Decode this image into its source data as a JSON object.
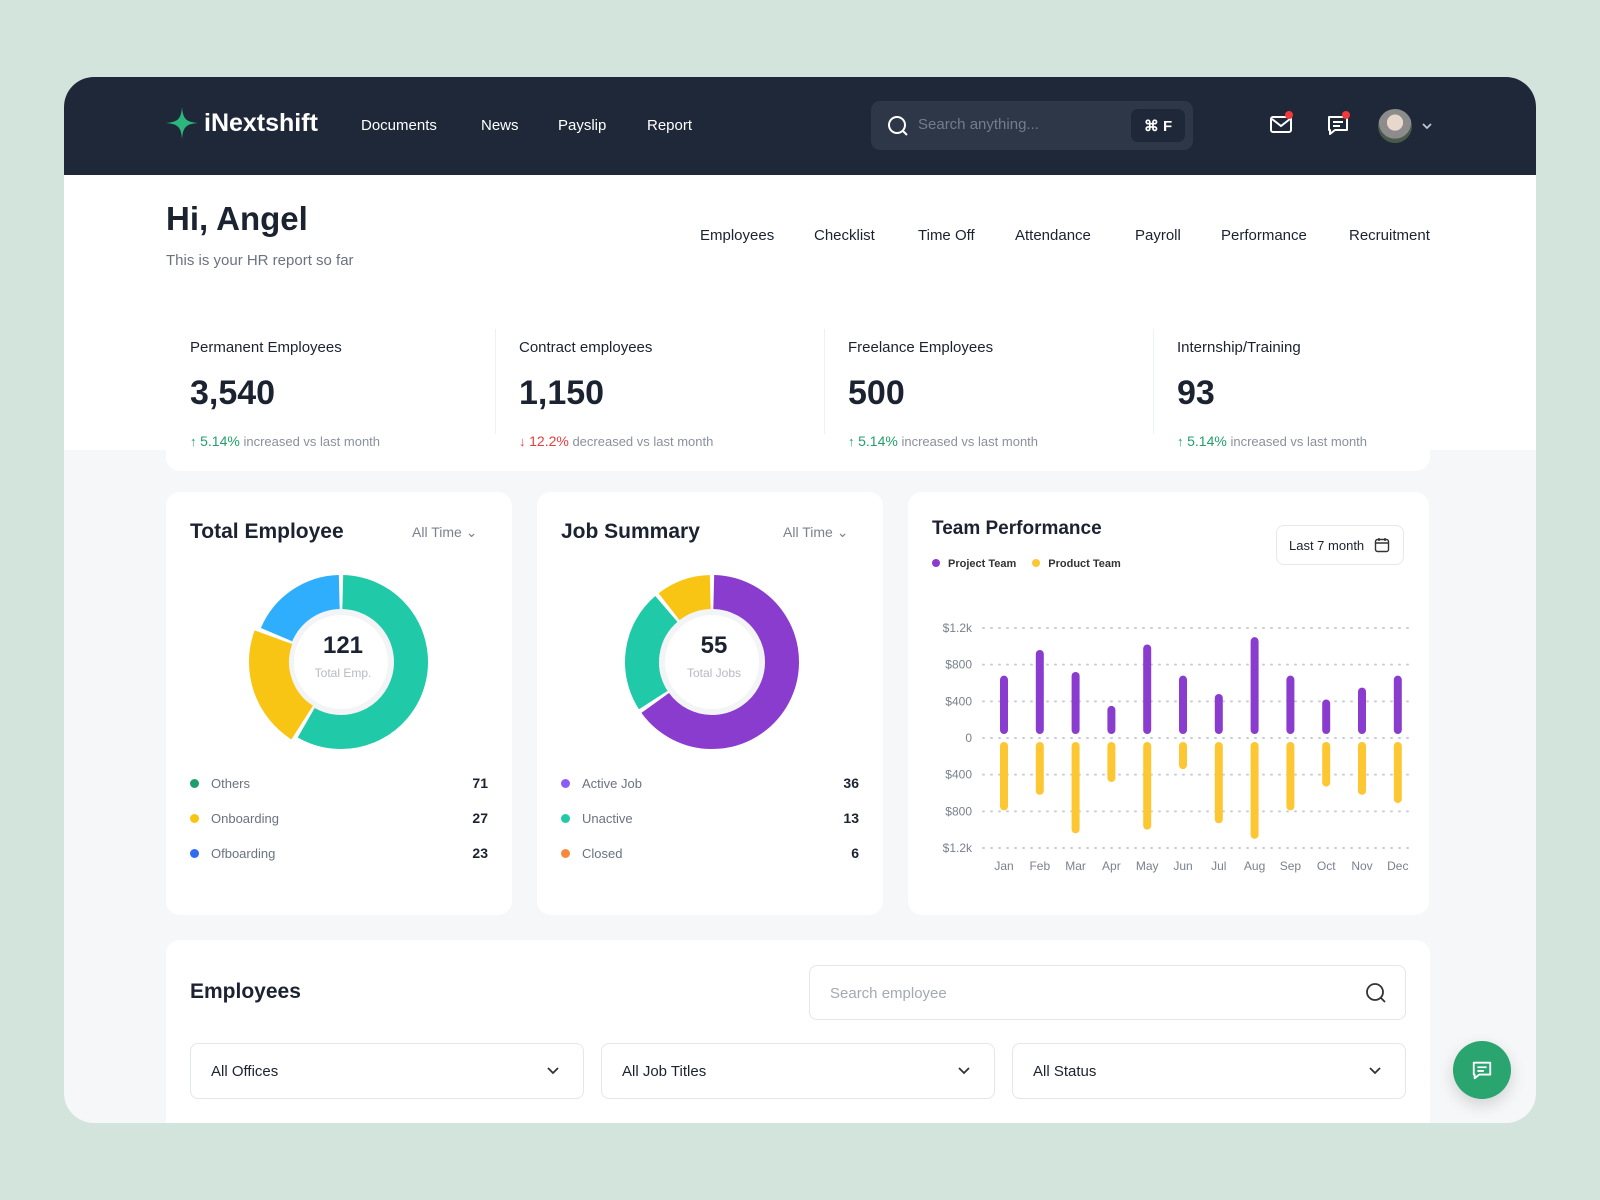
{
  "brand": "iNextshift",
  "nav": [
    "Documents",
    "News",
    "Payslip",
    "Report"
  ],
  "search": {
    "placeholder": "Search anything...",
    "shortcut": "⌘ F"
  },
  "greeting": {
    "title": "Hi, Angel",
    "subtitle": "This is your HR report so far"
  },
  "tabs": [
    "Employees",
    "Checklist",
    "Time Off",
    "Attendance",
    "Payroll",
    "Performance",
    "Recruitment"
  ],
  "stats": [
    {
      "label": "Permanent Employees",
      "value": "3,540",
      "arrow": "↑",
      "pct": "5.14%",
      "text": "increased vs last month",
      "color": "#22a06b"
    },
    {
      "label": "Contract employees",
      "value": "1,150",
      "arrow": "↓",
      "pct": "12.2%",
      "text": "decreased vs last month",
      "color": "#ef3b3b"
    },
    {
      "label": "Freelance Employees",
      "value": "500",
      "arrow": "↑",
      "pct": "5.14%",
      "text": "increased vs last month",
      "color": "#22a06b"
    },
    {
      "label": "Internship/Training",
      "value": "93",
      "arrow": "↑",
      "pct": "5.14%",
      "text": "increased vs last month",
      "color": "#22a06b"
    }
  ],
  "total_employee": {
    "title": "Total Employee",
    "filter": "All Time",
    "total": "121",
    "total_label": "Total Emp.",
    "items": [
      {
        "label": "Others",
        "value": 71,
        "color": "#20c9a8",
        "dot": "#1f9d6b"
      },
      {
        "label": "Onboarding",
        "value": 27,
        "color": "#f8c514",
        "dot": "#f8c514"
      },
      {
        "label": "Ofboarding",
        "value": 23,
        "color": "#2eaefc",
        "dot": "#2f6cf0"
      }
    ]
  },
  "job_summary": {
    "title": "Job Summary",
    "filter": "All Time",
    "total": "55",
    "total_label": "Total Jobs",
    "items": [
      {
        "label": "Active Job",
        "value": 36,
        "color": "#8a3ccf",
        "dot": "#8b5cf6"
      },
      {
        "label": "Unactive",
        "value": 13,
        "color": "#20c9a8",
        "dot": "#20c9a8"
      },
      {
        "label": "Closed",
        "value": 6,
        "color": "#f8c514",
        "dot": "#f58a3c"
      }
    ]
  },
  "chart_data": {
    "type": "bar",
    "title": "Team Performance",
    "filter": "Last 7 month",
    "categories": [
      "Jan",
      "Feb",
      "Mar",
      "Apr",
      "May",
      "Jun",
      "Jul",
      "Aug",
      "Sep",
      "Oct",
      "Nov",
      "Dec"
    ],
    "series": [
      {
        "name": "Project Team",
        "color": "#8a3ccf",
        "values": [
          680,
          960,
          720,
          350,
          1020,
          680,
          480,
          1100,
          680,
          420,
          550,
          680
        ]
      },
      {
        "name": "Product Team",
        "color": "#fdc734",
        "values": [
          -790,
          -620,
          -1040,
          -480,
          -1000,
          -340,
          -930,
          -1100,
          -790,
          -530,
          -620,
          -710
        ]
      }
    ],
    "yticks": [
      "$1.2k",
      "$800",
      "$400",
      "0",
      "$400",
      "$800",
      "$1.2k"
    ],
    "ylim": [
      -1200,
      1200
    ],
    "grid": true,
    "legend": "top-left"
  },
  "employees": {
    "title": "Employees",
    "search_placeholder": "Search employee",
    "filters": [
      "All Offices",
      "All Job Titles",
      "All Status"
    ]
  }
}
